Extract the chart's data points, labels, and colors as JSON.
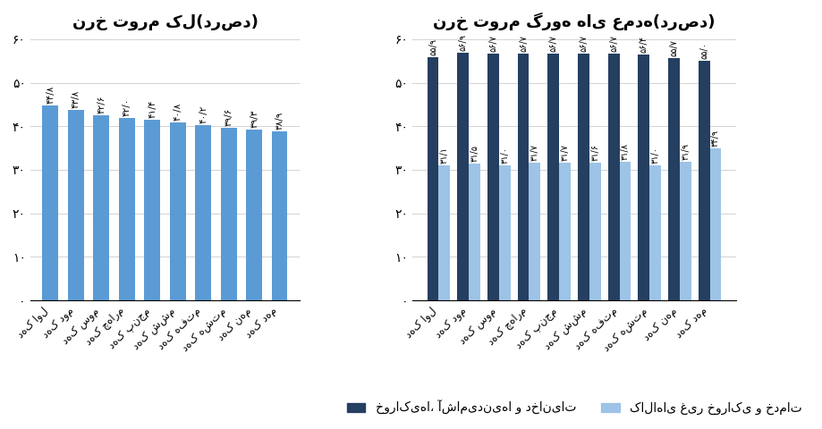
{
  "left_title": "نرخ تورم کل(درصد)",
  "right_title": "نرخ تورم گروه های عمده(درصد)",
  "decile_labels_display": [
    "دهک اول",
    "دهک دوم",
    "دهک سوم",
    "دهک چهارم",
    "دهک پنجم",
    "دهک ششم",
    "دهک هفتم",
    "دهک هشتم",
    "دهک نهم",
    "دهک دهم"
  ],
  "left_values": [
    44.8,
    43.8,
    42.6,
    42.0,
    41.4,
    40.8,
    40.2,
    39.6,
    39.3,
    38.9
  ],
  "left_labels": [
    "۴۴/۸",
    "۴۳/۸",
    "۴۲/۶",
    "۴۲/۰",
    "۴۱/۴",
    "۴۰/۸",
    "۴۰/۲",
    "۳۹/۶",
    "۳۹/۳",
    "۳۸/۹"
  ],
  "food_values": [
    55.9,
    56.9,
    56.7,
    56.7,
    56.7,
    56.7,
    56.7,
    56.4,
    55.7,
    55.0
  ],
  "food_labels": [
    "۵۵/۹",
    "۵۶/۹",
    "۵۶/۷",
    "۵۶/۷",
    "۵۶/۷",
    "۵۶/۷",
    "۵۶/۷",
    "۵۶/۴",
    "۵۵/۷",
    "۵۵/۰"
  ],
  "nonfood_values": [
    31.1,
    31.5,
    31.0,
    31.7,
    31.7,
    31.6,
    31.8,
    31.0,
    31.9,
    34.9
  ],
  "nonfood_labels": [
    "۳۱/۱",
    "۳۱/۵",
    "۳۱/۰",
    "۳۱/۷",
    "۳۱/۷",
    "۳۱/۶",
    "۳۱/۸",
    "۳۱/۰",
    "۳۱/۹",
    "۳۴/۹"
  ],
  "left_bar_color": "#5B9BD5",
  "food_bar_color": "#243F60",
  "nonfood_bar_color": "#9DC3E6",
  "ylim": [
    0,
    60
  ],
  "yticks": [
    0,
    10,
    20,
    30,
    40,
    50,
    60
  ],
  "ytick_labels": [
    "۰",
    "۱۰",
    "۲۰",
    "۳۰",
    "۴۰",
    "۵۰",
    "۶۰"
  ],
  "legend_food": "خوراکی‌ها، آشامیدنی‌ها و دخانیات",
  "legend_nonfood": "کالاهای غیر خوراکی و خدمات"
}
